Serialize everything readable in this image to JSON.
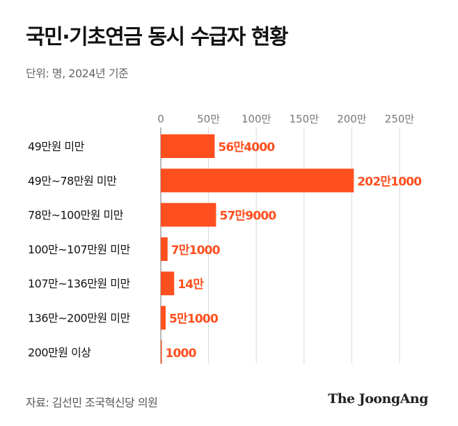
{
  "header": {
    "title": "국민·기초연금 동시 수급자 현황",
    "subtitle": "단위: 명, 2024년 기준"
  },
  "footer": {
    "source": "자료: 김선민 조국혁신당 의원",
    "brand": "The JoongAng"
  },
  "chart_data": {
    "type": "bar",
    "orientation": "horizontal",
    "title": "국민·기초연금 동시 수급자 현황",
    "unit": "명",
    "categories": [
      "49만원 미만",
      "49만~78만원 미만",
      "78만~100만원 미만",
      "100만~107만원 미만",
      "107만~136만원 미만",
      "136만~200만원 미만",
      "200만원 이상"
    ],
    "values": [
      564000,
      2021000,
      579000,
      71000,
      140000,
      51000,
      1000
    ],
    "data_labels": [
      "56만4000",
      "202만1000",
      "57만9000",
      "7만1000",
      "14만",
      "5만1000",
      "1000"
    ],
    "x_ticks": [
      0,
      500000,
      1000000,
      1500000,
      2000000,
      2500000
    ],
    "x_tick_labels": [
      "0",
      "50만",
      "100만",
      "150만",
      "200만",
      "250만"
    ],
    "xlim": [
      0,
      2500000
    ],
    "grid": true,
    "colors": {
      "bar": "#ff4f1f",
      "label": "#ff4f1f",
      "grid": "#d9d9d9"
    }
  }
}
